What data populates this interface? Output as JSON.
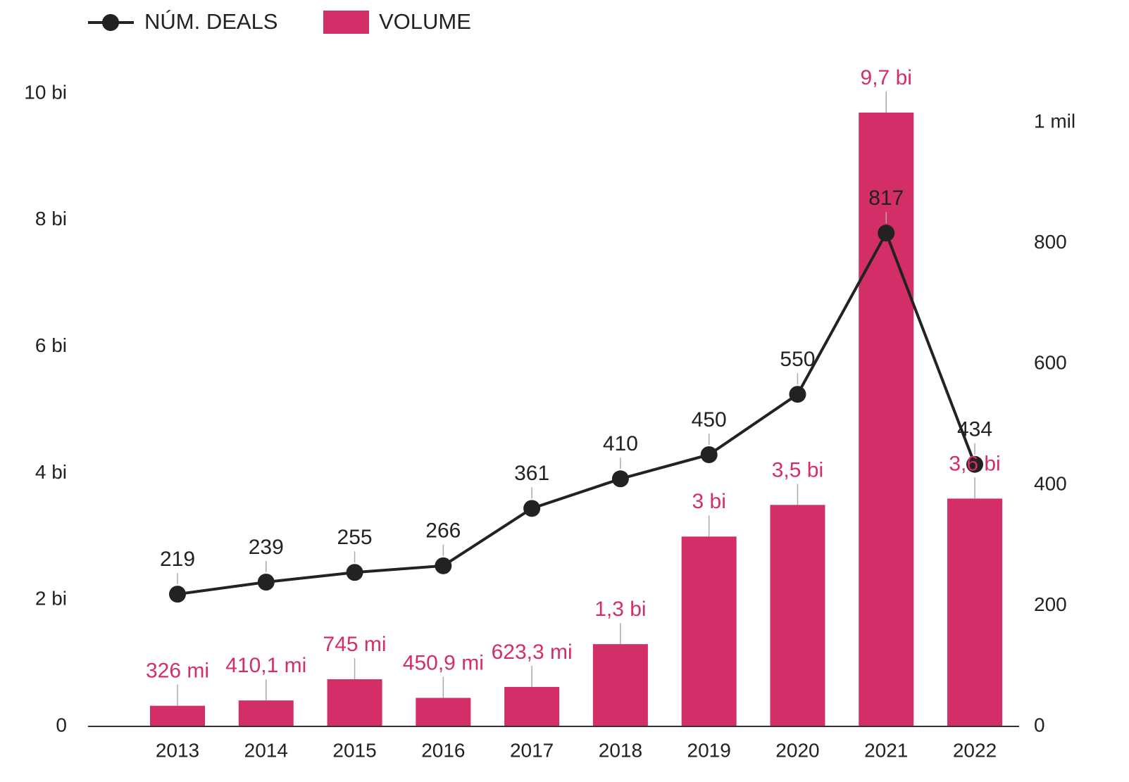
{
  "chart_data": {
    "type": "bar-line",
    "categories": [
      "2013",
      "2014",
      "2015",
      "2016",
      "2017",
      "2018",
      "2019",
      "2020",
      "2021",
      "2022"
    ],
    "series": [
      {
        "name": "VOLUME",
        "type": "bar",
        "color": "#d42e68",
        "values": [
          0.326,
          0.4101,
          0.745,
          0.4509,
          0.6233,
          1.3,
          3,
          3.5,
          9.7,
          3.6
        ],
        "value_labels": [
          "326 mi",
          "410,1 mi",
          "745 mi",
          "450,9 mi",
          "623,3 mi",
          "1,3 bi",
          "3 bi",
          "3,5 bi",
          "9,7 bi",
          "3,6 bi"
        ]
      },
      {
        "name": "NÚM. DEALS",
        "type": "line",
        "axis": "y2",
        "color": "#222222",
        "values": [
          219,
          239,
          255,
          266,
          361,
          410,
          450,
          550,
          817,
          434
        ]
      }
    ],
    "ylim": [
      0,
      10
    ],
    "yticks": [
      0,
      {
        "value": 2,
        "label": "2 bi"
      },
      {
        "value": 4,
        "label": "4 bi"
      },
      {
        "value": 6,
        "label": "6 bi"
      },
      {
        "value": 8,
        "label": "8 bi"
      },
      {
        "value": 10,
        "label": "10 bi"
      }
    ],
    "y2lim": [
      0,
      1048
    ],
    "y2ticks": [
      0,
      200,
      400,
      600,
      800,
      {
        "value": 1000,
        "label": "1 mil"
      }
    ],
    "legend": "top-left"
  }
}
